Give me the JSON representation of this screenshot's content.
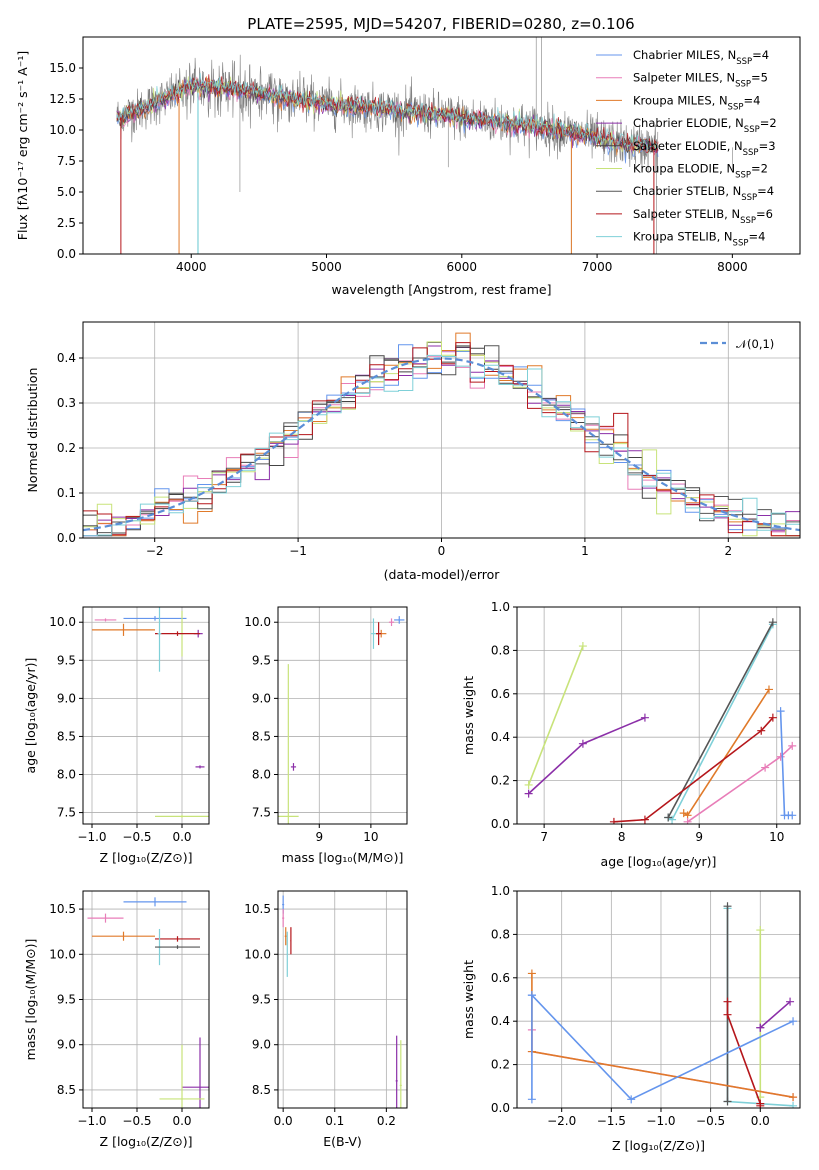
{
  "figure": {
    "title": "PLATE=2595, MJD=54207, FIBERID=0280, z=0.106"
  },
  "colors": {
    "chabrier_miles": "#6495ED",
    "salpeter_miles": "#E87DB8",
    "kroupa_miles": "#E07A2A",
    "chabrier_elodie": "#8B2FA8",
    "salpeter_elodie": "#444444",
    "kroupa_elodie": "#C8E37A",
    "chabrier_stelib": "#555555",
    "salpeter_stelib": "#B5161B",
    "kroupa_stelib": "#7FD0D8",
    "data_spectrum": "#808080",
    "normal_curve": "#5B8ED6"
  },
  "chart_data": [
    {
      "id": "spectrum",
      "type": "line",
      "xlabel": "wavelength [Angstrom, rest frame]",
      "ylabel": "Flux [fλ10⁻¹⁷ erg cm⁻² s⁻¹ A⁻¹]",
      "xlim": [
        3200,
        8500
      ],
      "ylim": [
        0,
        17.5
      ],
      "xticks": [
        "4000",
        "5000",
        "6000",
        "7000",
        "8000"
      ],
      "yticks": [
        "0.0",
        "2.5",
        "5.0",
        "7.5",
        "10.0",
        "12.5",
        "15.0"
      ],
      "legend_position": "top-right",
      "legend": [
        "Chabrier MILES, N_SSP=4",
        "Salpeter MILES, N_SSP=5",
        "Kroupa MILES, N_SSP=4",
        "Chabrier ELODIE, N_SSP=2",
        "Salpeter ELODIE, N_SSP=3",
        "Kroupa ELODIE, N_SSP=2",
        "Chabrier STELIB, N_SSP=4",
        "Salpeter STELIB, N_SSP=6",
        "Kroupa STELIB, N_SSP=4"
      ],
      "continuum": {
        "x": [
          3450,
          3600,
          3800,
          4000,
          4200,
          4500,
          4800,
          5100,
          5400,
          5700,
          6000,
          6300,
          6600,
          6900,
          7200,
          7450
        ],
        "y": [
          11.0,
          11.5,
          12.5,
          13.6,
          13.4,
          13.0,
          12.4,
          12.0,
          11.7,
          11.4,
          11.0,
          10.6,
          10.2,
          9.6,
          8.8,
          8.6
        ]
      }
    },
    {
      "id": "residuals",
      "type": "line",
      "xlabel": "(data-model)/error",
      "ylabel": "Normed distribution",
      "xlim": [
        -2.5,
        2.5
      ],
      "ylim": [
        0,
        0.48
      ],
      "xticks": [
        "−2",
        "−1",
        "0",
        "1",
        "2"
      ],
      "yticks": [
        "0.0",
        "0.1",
        "0.2",
        "0.3",
        "0.4"
      ],
      "legend_position": "top-right",
      "legend": [
        "𝒩(0,1)"
      ],
      "series": [
        {
          "name": "N(0,1)",
          "x_from": -2.5,
          "x_to": 2.5,
          "mean": 0,
          "sigma": 1
        }
      ]
    },
    {
      "id": "age_vs_Z",
      "type": "scatter",
      "xlabel": "Z [log₁₀(Z/Z⊙)]",
      "ylabel": "age  [log₁₀(age/yr)]",
      "xlim": [
        -1.1,
        0.3
      ],
      "ylim": [
        7.35,
        10.2
      ],
      "xticks": [
        "−1.0",
        "−0.5",
        "0.0"
      ],
      "yticks": [
        "7.5",
        "8.0",
        "8.5",
        "9.0",
        "9.5",
        "10.0"
      ],
      "points": [
        {
          "model": "chabrier_miles",
          "x": -0.3,
          "y": 10.05,
          "xerr": 0.35,
          "yerr": 0.03
        },
        {
          "model": "salpeter_miles",
          "x": -0.85,
          "y": 10.03,
          "xerr": 0.12,
          "yerr": 0.02
        },
        {
          "model": "kroupa_miles",
          "x": -0.65,
          "y": 9.9,
          "xerr": 0.35,
          "yerr": 0.08
        },
        {
          "model": "chabrier_elodie",
          "x": 0.18,
          "y": 9.85,
          "xerr": 0.05,
          "yerr": 0.05
        },
        {
          "model": "chabrier_elodie",
          "x": 0.2,
          "y": 8.1,
          "xerr": 0.05,
          "yerr": 0.02
        },
        {
          "model": "kroupa_elodie",
          "x": 0.0,
          "y": 9.85,
          "xerr": 0.02,
          "yerr": 0.3
        },
        {
          "model": "kroupa_elodie",
          "x": 0.0,
          "y": 7.45,
          "xerr": 0.3,
          "yerr": 0.02
        },
        {
          "model": "salpeter_stelib",
          "x": -0.05,
          "y": 9.85,
          "xerr": 0.25,
          "yerr": 0.03
        },
        {
          "model": "kroupa_stelib",
          "x": -0.25,
          "y": 9.85,
          "xerr": 0.02,
          "yerr": 0.5
        }
      ]
    },
    {
      "id": "age_vs_mass",
      "type": "scatter",
      "xlabel": "mass [log₁₀(M/M⊙)]",
      "ylabel": "",
      "xlim": [
        8.2,
        10.7
      ],
      "ylim": [
        7.35,
        10.2
      ],
      "xticks": [
        "9",
        "10"
      ],
      "yticks": [
        "7.5",
        "8.0",
        "8.5",
        "9.0",
        "9.5",
        "10.0"
      ],
      "points": [
        {
          "model": "chabrier_miles",
          "x": 10.55,
          "y": 10.03,
          "xerr": 0.1,
          "yerr": 0.05
        },
        {
          "model": "salpeter_miles",
          "x": 10.4,
          "y": 10.0,
          "xerr": 0.05,
          "yerr": 0.05
        },
        {
          "model": "kroupa_miles",
          "x": 10.2,
          "y": 9.85,
          "xerr": 0.1,
          "yerr": 0.05
        },
        {
          "model": "chabrier_elodie",
          "x": 8.5,
          "y": 8.1,
          "xerr": 0.05,
          "yerr": 0.05
        },
        {
          "model": "kroupa_elodie",
          "x": 8.4,
          "y": 7.45,
          "xerr": 0.2,
          "yerr": 2.0
        },
        {
          "model": "salpeter_stelib",
          "x": 10.15,
          "y": 9.85,
          "xerr": 0.05,
          "yerr": 0.15
        },
        {
          "model": "kroupa_stelib",
          "x": 10.05,
          "y": 9.85,
          "xerr": 0.05,
          "yerr": 0.2
        }
      ]
    },
    {
      "id": "massweight_vs_age",
      "type": "line",
      "xlabel": "age  [log₁₀(age/yr)]",
      "ylabel": "mass weight",
      "xlim": [
        6.65,
        10.3
      ],
      "ylim": [
        0,
        1.0
      ],
      "xticks": [
        "7",
        "8",
        "9",
        "10"
      ],
      "yticks": [
        "0.0",
        "0.2",
        "0.4",
        "0.6",
        "0.8",
        "1.0"
      ],
      "series": [
        {
          "model": "kroupa_elodie",
          "x": [
            6.8,
            7.5
          ],
          "y": [
            0.18,
            0.82
          ]
        },
        {
          "model": "chabrier_elodie",
          "x": [
            6.8,
            7.5,
            8.3
          ],
          "y": [
            0.14,
            0.37,
            0.49
          ]
        },
        {
          "model": "kroupa_stelib",
          "x": [
            8.6,
            8.65,
            9.95
          ],
          "y": [
            0.03,
            0.02,
            0.92
          ]
        },
        {
          "model": "chabrier_stelib",
          "x": [
            8.6,
            9.95
          ],
          "y": [
            0.03,
            0.93
          ]
        },
        {
          "model": "kroupa_miles",
          "x": [
            8.8,
            8.85,
            9.9
          ],
          "y": [
            0.05,
            0.04,
            0.62
          ]
        },
        {
          "model": "salpeter_stelib",
          "x": [
            7.9,
            8.3,
            9.8,
            9.95
          ],
          "y": [
            0.01,
            0.02,
            0.43,
            0.49
          ]
        },
        {
          "model": "salpeter_miles",
          "x": [
            8.85,
            9.85,
            10.05,
            10.2
          ],
          "y": [
            0.01,
            0.26,
            0.31,
            0.36
          ]
        },
        {
          "model": "chabrier_miles",
          "x": [
            10.05,
            10.1,
            10.15,
            10.2
          ],
          "y": [
            0.52,
            0.04,
            0.04,
            0.04
          ]
        }
      ]
    },
    {
      "id": "mass_vs_Z",
      "type": "scatter",
      "xlabel": "Z [log₁₀(Z/Z⊙)]",
      "ylabel": "mass [log₁₀(M/M⊙)]",
      "xlim": [
        -1.1,
        0.3
      ],
      "ylim": [
        8.3,
        10.7
      ],
      "xticks": [
        "−1.0",
        "−0.5",
        "0.0"
      ],
      "yticks": [
        "8.5",
        "9.0",
        "9.5",
        "10.0",
        "10.5"
      ],
      "points": [
        {
          "model": "chabrier_miles",
          "x": -0.3,
          "y": 10.58,
          "xerr": 0.35,
          "yerr": 0.05
        },
        {
          "model": "salpeter_miles",
          "x": -0.85,
          "y": 10.4,
          "xerr": 0.2,
          "yerr": 0.05
        },
        {
          "model": "kroupa_miles",
          "x": -0.65,
          "y": 10.2,
          "xerr": 0.35,
          "yerr": 0.05
        },
        {
          "model": "salpeter_stelib",
          "x": -0.05,
          "y": 10.17,
          "xerr": 0.25,
          "yerr": 0.03
        },
        {
          "model": "kroupa_stelib",
          "x": -0.25,
          "y": 10.08,
          "xerr": 0.02,
          "yerr": 0.2
        },
        {
          "model": "chabrier_stelib",
          "x": -0.05,
          "y": 10.08,
          "xerr": 0.25,
          "yerr": 0.02
        },
        {
          "model": "chabrier_elodie",
          "x": 0.2,
          "y": 8.53,
          "xerr": 0.2,
          "yerr": 0.55
        },
        {
          "model": "kroupa_elodie",
          "x": 0.0,
          "y": 8.4,
          "xerr": 0.25,
          "yerr": 0.6
        }
      ]
    },
    {
      "id": "mass_vs_ebv",
      "type": "scatter",
      "xlabel": "E(B-V)",
      "ylabel": "",
      "xlim": [
        -0.01,
        0.24
      ],
      "ylim": [
        8.3,
        10.7
      ],
      "xticks": [
        "0.0",
        "0.1",
        "0.2"
      ],
      "yticks": [
        "8.5",
        "9.0",
        "9.5",
        "10.0",
        "10.5"
      ],
      "points": [
        {
          "model": "chabrier_miles",
          "x": 0.0,
          "y": 10.55,
          "xerr": 0.002,
          "yerr": 0.1
        },
        {
          "model": "salpeter_miles",
          "x": 0.0,
          "y": 10.4,
          "xerr": 0.002,
          "yerr": 0.1
        },
        {
          "model": "kroupa_miles",
          "x": 0.005,
          "y": 10.2,
          "xerr": 0.002,
          "yerr": 0.1
        },
        {
          "model": "salpeter_stelib",
          "x": 0.015,
          "y": 10.15,
          "xerr": 0.001,
          "yerr": 0.15
        },
        {
          "model": "kroupa_stelib",
          "x": 0.008,
          "y": 10.0,
          "xerr": 0.001,
          "yerr": 0.25
        },
        {
          "model": "chabrier_elodie",
          "x": 0.22,
          "y": 8.6,
          "xerr": 0.002,
          "yerr": 0.5
        },
        {
          "model": "kroupa_elodie",
          "x": 0.228,
          "y": 8.55,
          "xerr": 0.002,
          "yerr": 0.5
        }
      ]
    },
    {
      "id": "massweight_vs_Z",
      "type": "line",
      "xlabel": "Z [log₁₀(Z/Z⊙)]",
      "ylabel": "mass weight",
      "xlim": [
        -2.45,
        0.4
      ],
      "ylim": [
        0,
        1.0
      ],
      "xticks": [
        "−2.0",
        "−1.5",
        "−1.0",
        "−0.5",
        "0.0"
      ],
      "yticks": [
        "0.0",
        "0.2",
        "0.4",
        "0.6",
        "0.8",
        "1.0"
      ],
      "series": [
        {
          "model": "kroupa_elodie",
          "x": [
            0.0,
            0.0
          ],
          "y": [
            0.82,
            0.05
          ]
        },
        {
          "model": "chabrier_elodie",
          "x": [
            0.0,
            0.0,
            0.3
          ],
          "y": [
            0.37,
            0.37,
            0.49
          ]
        },
        {
          "model": "kroupa_stelib",
          "x": [
            -0.33,
            -0.33,
            0.33
          ],
          "y": [
            0.92,
            0.03,
            0.01
          ]
        },
        {
          "model": "chabrier_stelib",
          "x": [
            -0.33,
            -0.33
          ],
          "y": [
            0.93,
            0.03
          ]
        },
        {
          "model": "salpeter_stelib",
          "x": [
            -0.33,
            -0.33,
            0.0,
            0.0
          ],
          "y": [
            0.49,
            0.43,
            0.02,
            0.01
          ]
        },
        {
          "model": "salpeter_miles",
          "x": [
            -2.3,
            -2.3,
            0.33
          ],
          "y": [
            0.36,
            0.26,
            0.05
          ]
        },
        {
          "model": "kroupa_miles",
          "x": [
            -2.3,
            -2.3,
            0.33
          ],
          "y": [
            0.62,
            0.26,
            0.05
          ]
        },
        {
          "model": "chabrier_miles",
          "x": [
            -2.3,
            -1.3,
            0.33
          ],
          "y": [
            0.52,
            0.04,
            0.4
          ]
        },
        {
          "model": "chabrier_miles",
          "x": [
            -2.3,
            -2.3
          ],
          "y": [
            0.52,
            0.04
          ]
        }
      ]
    }
  ]
}
